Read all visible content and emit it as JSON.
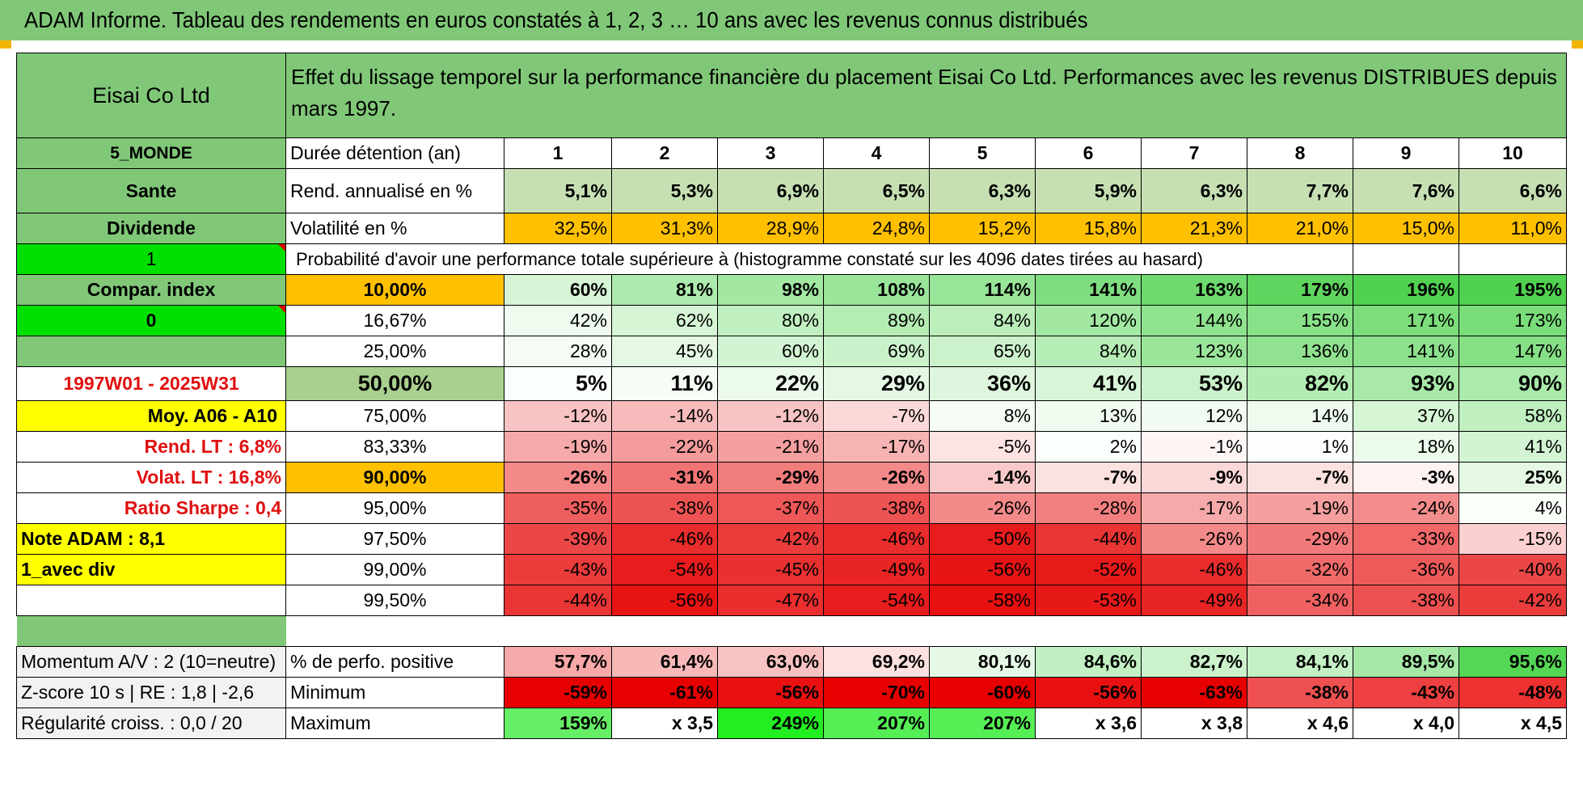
{
  "title": "ADAM Informe. Tableau des rendements en euros constatés à 1, 2, 3 … 10 ans avec les revenus connus distribués",
  "header": {
    "company": "Eisai Co Ltd",
    "description": "Effet du lissage temporel sur la performance financière du placement Eisai Co Ltd. Performances avec les revenus DISTRIBUES depuis mars 1997."
  },
  "side": {
    "zone": "5_MONDE",
    "sector": "Sante",
    "type": "Dividende",
    "flag1": "1",
    "compar": "Compar. index",
    "flag0": "0",
    "period": "1997W01 - 2025W31",
    "moy": "Moy. A06 - A10",
    "rend_lt": "Rend. LT :    6,8%",
    "volat_lt": "Volat. LT :    16,8%",
    "sharpe": "Ratio Sharpe :     0,4",
    "note": "Note ADAM : 8,1",
    "div": "1_avec div"
  },
  "durations_label": "Durée détention (an)",
  "durations": [
    "1",
    "2",
    "3",
    "4",
    "5",
    "6",
    "7",
    "8",
    "9",
    "10"
  ],
  "rend_label": "Rend. annualisé en %",
  "rend": [
    "5,1%",
    "5,3%",
    "6,9%",
    "6,5%",
    "6,3%",
    "5,9%",
    "6,3%",
    "7,7%",
    "7,6%",
    "6,6%"
  ],
  "vol_label": "Volatilité en %",
  "vol": [
    "32,5%",
    "31,3%",
    "28,9%",
    "24,8%",
    "15,2%",
    "15,8%",
    "21,3%",
    "21,0%",
    "15,0%",
    "11,0%"
  ],
  "proba_label": "Probabilité d'avoir une performance totale supérieure à (histogramme constaté sur les 4096 dates tirées au hasard)",
  "prob_rows": [
    {
      "p": "10,00%",
      "v": [
        "60%",
        "81%",
        "98%",
        "108%",
        "114%",
        "141%",
        "163%",
        "179%",
        "196%",
        "195%"
      ]
    },
    {
      "p": "16,67%",
      "v": [
        "42%",
        "62%",
        "80%",
        "89%",
        "84%",
        "120%",
        "144%",
        "155%",
        "171%",
        "173%"
      ]
    },
    {
      "p": "25,00%",
      "v": [
        "28%",
        "45%",
        "60%",
        "69%",
        "65%",
        "84%",
        "123%",
        "136%",
        "141%",
        "147%"
      ]
    },
    {
      "p": "50,00%",
      "v": [
        "5%",
        "11%",
        "22%",
        "29%",
        "36%",
        "41%",
        "53%",
        "82%",
        "93%",
        "90%"
      ]
    },
    {
      "p": "75,00%",
      "v": [
        "-12%",
        "-14%",
        "-12%",
        "-7%",
        "8%",
        "13%",
        "12%",
        "14%",
        "37%",
        "58%"
      ]
    },
    {
      "p": "83,33%",
      "v": [
        "-19%",
        "-22%",
        "-21%",
        "-17%",
        "-5%",
        "2%",
        "-1%",
        "1%",
        "18%",
        "41%"
      ]
    },
    {
      "p": "90,00%",
      "v": [
        "-26%",
        "-31%",
        "-29%",
        "-26%",
        "-14%",
        "-7%",
        "-9%",
        "-7%",
        "-3%",
        "25%"
      ]
    },
    {
      "p": "95,00%",
      "v": [
        "-35%",
        "-38%",
        "-37%",
        "-38%",
        "-26%",
        "-28%",
        "-17%",
        "-19%",
        "-24%",
        "4%"
      ]
    },
    {
      "p": "97,50%",
      "v": [
        "-39%",
        "-46%",
        "-42%",
        "-46%",
        "-50%",
        "-44%",
        "-26%",
        "-29%",
        "-33%",
        "-15%"
      ]
    },
    {
      "p": "99,00%",
      "v": [
        "-43%",
        "-54%",
        "-45%",
        "-49%",
        "-56%",
        "-52%",
        "-46%",
        "-32%",
        "-36%",
        "-40%"
      ]
    },
    {
      "p": "99,50%",
      "v": [
        "-44%",
        "-56%",
        "-47%",
        "-54%",
        "-58%",
        "-53%",
        "-49%",
        "-34%",
        "-38%",
        "-42%"
      ]
    }
  ],
  "stats": [
    {
      "left": "Momentum A/V : 2 (10=neutre)",
      "label": "% de perfo. positive",
      "v": [
        "57,7%",
        "61,4%",
        "63,0%",
        "69,2%",
        "80,1%",
        "84,6%",
        "82,7%",
        "84,1%",
        "89,5%",
        "95,6%"
      ]
    },
    {
      "left": "Z-score 10 s | RE : 1,8 | -2,6",
      "label": "Minimum",
      "v": [
        "-59%",
        "-61%",
        "-56%",
        "-70%",
        "-60%",
        "-56%",
        "-63%",
        "-38%",
        "-43%",
        "-48%"
      ]
    },
    {
      "left": "Régularité croiss. : 0,0 / 20",
      "label": "Maximum",
      "v": [
        "159%",
        "x 3,5",
        "249%",
        "207%",
        "207%",
        "x 3,6",
        "x 3,8",
        "x 4,6",
        "x 4,0",
        "x 4,5"
      ]
    }
  ],
  "colors": {
    "banner_green": "#80c878",
    "header_green": "#80c878",
    "rend_green": "#c6e0b4",
    "vol_orange": "#ffc000",
    "bright_green": "#00e000",
    "yellow": "#ffff00",
    "label_red": "#e01010",
    "stats_gray": "#f2f2f2"
  },
  "cell_colors": {
    "prob": [
      [
        "#d6f5d6",
        "#adeaad",
        "#a2e7a2",
        "#9ae59a",
        "#98e498",
        "#7fde7f",
        "#6fd96f",
        "#5fd55f",
        "#50d150",
        "#50d150"
      ],
      [
        "#eefbee",
        "#d5f5d5",
        "#c0f0c0",
        "#b4ecb4",
        "#bbeebb",
        "#a2e8a2",
        "#8fe38f",
        "#88e188",
        "#7bdd7b",
        "#79dd79"
      ],
      [
        "#f4fcf4",
        "#e4f8e4",
        "#d3f4d3",
        "#caf2ca",
        "#ccf2cc",
        "#b6edb6",
        "#9ae59a",
        "#90e290",
        "#8ce18c",
        "#85df85"
      ],
      [
        "#fbfffb",
        "#f5fdf5",
        "#ebfaeb",
        "#e4f8e4",
        "#ddf6dd",
        "#d8f5d8",
        "#ccf2cc",
        "#b3ecb3",
        "#a8e9a8",
        "#aaeaaa"
      ],
      [
        "#f8c3c3",
        "#f7bbbb",
        "#f8c3c3",
        "#fcd9d9",
        "#f6fdf6",
        "#f1fcf1",
        "#f2fcf2",
        "#eefbee",
        "#d5f5d5",
        "#c0f0c0"
      ],
      [
        "#f6a9a9",
        "#f49b9b",
        "#f5a0a0",
        "#f7b3b3",
        "#fde3e3",
        "#fbfffb",
        "#fff5f5",
        "#fdfffd",
        "#ecfbec",
        "#d3f4d3"
      ],
      [
        "#f38989",
        "#f17474",
        "#f27d7d",
        "#f38989",
        "#f9c9c9",
        "#fce1e1",
        "#fbd8d8",
        "#fce1e1",
        "#fef2f2",
        "#e4f8e4"
      ],
      [
        "#ef5e5e",
        "#ee5353",
        "#ee5757",
        "#ee5353",
        "#f38989",
        "#f27f7f",
        "#f6a9a9",
        "#f59f9f",
        "#f38c8c",
        "#fafffa"
      ],
      [
        "#ec4747",
        "#e92c2c",
        "#eb3c3c",
        "#e92c2c",
        "#e81c1c",
        "#ea3535",
        "#f38989",
        "#f27a7a",
        "#f06868",
        "#fbd0d0"
      ],
      [
        "#eb3b3b",
        "#e81c1c",
        "#ea3030",
        "#e92424",
        "#e61414",
        "#e71a1a",
        "#e92c2c",
        "#f06a6a",
        "#ee5a5a",
        "#ec4747"
      ],
      [
        "#ea3535",
        "#e71414",
        "#ea2d2d",
        "#e71c1c",
        "#e61010",
        "#e71818",
        "#e92424",
        "#ef6161",
        "#ed5050",
        "#eb3c3c"
      ]
    ],
    "stats": [
      [
        "#f7a8a8",
        "#f8b8b8",
        "#f9c2c2",
        "#fde0e0",
        "#e6f8e6",
        "#c2f0c2",
        "#ccf2cc",
        "#c4f0c4",
        "#a6e8a6",
        "#55d655"
      ],
      [
        "#e60000",
        "#e60000",
        "#e81010",
        "#e60000",
        "#e60000",
        "#e81010",
        "#e60000",
        "#ef5050",
        "#ee4040",
        "#ed3030"
      ],
      [
        "#66ee66",
        "#ffffff",
        "#22ee22",
        "#55ee55",
        "#55ee55",
        "#ffffff",
        "#ffffff",
        "#ffffff",
        "#ffffff",
        "#ffffff"
      ]
    ]
  }
}
